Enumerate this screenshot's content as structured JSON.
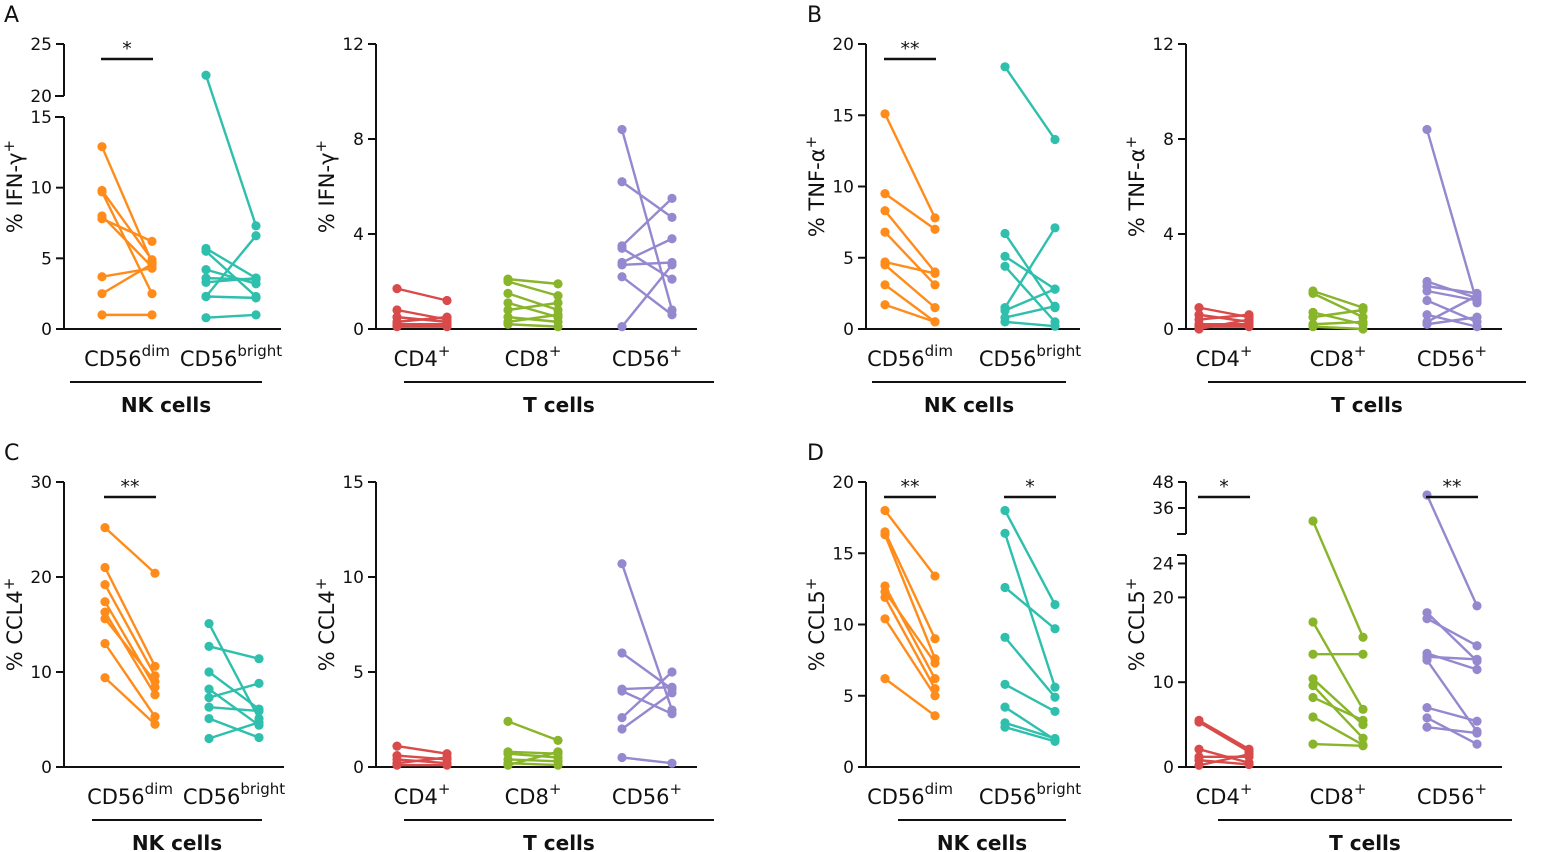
{
  "figure": {
    "panel_letters": [
      "A",
      "B",
      "C",
      "D"
    ]
  },
  "colors": {
    "CD56dim": "#ff8c1a",
    "CD56bright": "#2ebfad",
    "CD4": "#d94a4a",
    "CD8": "#88b52a",
    "CD56T": "#9588cf",
    "axis": "#111111"
  },
  "chart_data": [
    {
      "id": "A1",
      "panel": "A",
      "type": "scatter",
      "style": "paired-lines",
      "ylabel": "% IFN-γ⁺",
      "ylabel_main": "% IFN-",
      "ylabel_greek": "γ",
      "yticks": [
        0,
        5,
        10,
        15,
        20,
        25
      ],
      "ylim": [
        0,
        25
      ],
      "ybreak": {
        "lower_max": 15,
        "upper_min": 20,
        "upper_max": 25
      },
      "categories": [
        {
          "base": "CD56",
          "sup": "dim",
          "color_key": "CD56dim"
        },
        {
          "base": "CD56",
          "sup": "bright",
          "color_key": "CD56bright"
        }
      ],
      "group_label": "NK cells",
      "significance": [
        {
          "from": 0,
          "to": 0,
          "label": "*"
        }
      ],
      "pairs": [
        [
          [
            12.9,
            4.7
          ],
          [
            9.8,
            4.9
          ],
          [
            9.7,
            2.5
          ],
          [
            8.0,
            4.4
          ],
          [
            7.8,
            6.2
          ],
          [
            3.7,
            4.3
          ],
          [
            2.5,
            4.6
          ],
          [
            1.0,
            1.0
          ]
        ],
        [
          [
            22.0,
            7.3
          ],
          [
            5.7,
            3.6
          ],
          [
            5.5,
            2.3
          ],
          [
            4.2,
            3.2
          ],
          [
            3.6,
            3.5
          ],
          [
            3.3,
            3.6
          ],
          [
            2.3,
            6.6
          ],
          [
            2.3,
            2.2
          ],
          [
            0.8,
            1.0
          ]
        ]
      ]
    },
    {
      "id": "A2",
      "panel": "A",
      "type": "scatter",
      "style": "paired-lines",
      "ylabel": "% IFN-γ⁺",
      "ylabel_main": "% IFN-",
      "ylabel_greek": "γ",
      "yticks": [
        0,
        4,
        8,
        12
      ],
      "ylim": [
        0,
        12
      ],
      "categories": [
        {
          "base": "CD4",
          "sup": "+",
          "color_key": "CD4"
        },
        {
          "base": "CD8",
          "sup": "+",
          "color_key": "CD8"
        },
        {
          "base": "CD56",
          "sup": "+",
          "color_key": "CD56T"
        }
      ],
      "group_label": "T cells",
      "significance": [],
      "pairs": [
        [
          [
            1.7,
            1.2
          ],
          [
            0.8,
            0.4
          ],
          [
            0.5,
            0.3
          ],
          [
            0.3,
            0.5
          ],
          [
            0.2,
            0.2
          ],
          [
            0.1,
            0.1
          ]
        ],
        [
          [
            2.1,
            1.9
          ],
          [
            2.0,
            1.4
          ],
          [
            1.5,
            0.8
          ],
          [
            1.1,
            0.5
          ],
          [
            0.8,
            1.1
          ],
          [
            0.5,
            0.3
          ],
          [
            0.3,
            0.6
          ],
          [
            0.2,
            0.1
          ]
        ],
        [
          [
            8.4,
            0.8
          ],
          [
            6.2,
            4.7
          ],
          [
            3.5,
            5.5
          ],
          [
            3.4,
            2.1
          ],
          [
            2.8,
            3.8
          ],
          [
            2.7,
            2.8
          ],
          [
            2.2,
            0.6
          ],
          [
            0.1,
            2.7
          ]
        ]
      ]
    },
    {
      "id": "B1",
      "panel": "B",
      "type": "scatter",
      "style": "paired-lines",
      "ylabel": "% TNF-α⁺",
      "ylabel_main": "% TNF-",
      "ylabel_greek": "α",
      "yticks": [
        0,
        5,
        10,
        15,
        20
      ],
      "ylim": [
        0,
        20
      ],
      "categories": [
        {
          "base": "CD56",
          "sup": "dim",
          "color_key": "CD56dim"
        },
        {
          "base": "CD56",
          "sup": "bright",
          "color_key": "CD56bright"
        }
      ],
      "group_label": "NK cells",
      "significance": [
        {
          "from": 0,
          "to": 0,
          "label": "**"
        }
      ],
      "pairs": [
        [
          [
            15.1,
            7.8
          ],
          [
            9.5,
            7.0
          ],
          [
            8.3,
            4.0
          ],
          [
            6.8,
            3.1
          ],
          [
            4.7,
            3.9
          ],
          [
            4.5,
            1.5
          ],
          [
            3.1,
            0.5
          ],
          [
            1.7,
            0.5
          ]
        ],
        [
          [
            18.4,
            13.3
          ],
          [
            6.7,
            1.5
          ],
          [
            5.1,
            2.8
          ],
          [
            4.4,
            0.5
          ],
          [
            1.5,
            7.1
          ],
          [
            1.3,
            2.8
          ],
          [
            0.8,
            1.6
          ],
          [
            0.5,
            0.2
          ]
        ]
      ]
    },
    {
      "id": "B2",
      "panel": "B",
      "type": "scatter",
      "style": "paired-lines",
      "ylabel": "% TNF-α⁺",
      "ylabel_main": "% TNF-",
      "ylabel_greek": "α",
      "yticks": [
        0,
        4,
        8,
        12
      ],
      "ylim": [
        0,
        12
      ],
      "categories": [
        {
          "base": "CD4",
          "sup": "+",
          "color_key": "CD4"
        },
        {
          "base": "CD8",
          "sup": "+",
          "color_key": "CD8"
        },
        {
          "base": "CD56",
          "sup": "+",
          "color_key": "CD56T"
        }
      ],
      "group_label": "T cells",
      "significance": [],
      "pairs": [
        [
          [
            0.9,
            0.5
          ],
          [
            0.6,
            0.3
          ],
          [
            0.4,
            0.6
          ],
          [
            0.2,
            0.2
          ],
          [
            0.1,
            0.1
          ],
          [
            0.0,
            0.4
          ]
        ],
        [
          [
            1.6,
            0.9
          ],
          [
            1.5,
            0.5
          ],
          [
            0.7,
            0.2
          ],
          [
            0.5,
            0.8
          ],
          [
            0.2,
            0.3
          ],
          [
            0.1,
            0.0
          ]
        ],
        [
          [
            8.4,
            1.1
          ],
          [
            2.0,
            1.3
          ],
          [
            1.8,
            1.5
          ],
          [
            1.6,
            1.2
          ],
          [
            1.2,
            0.3
          ],
          [
            0.6,
            0.1
          ],
          [
            0.3,
            1.4
          ],
          [
            0.2,
            0.5
          ]
        ]
      ]
    },
    {
      "id": "C1",
      "panel": "C",
      "type": "scatter",
      "style": "paired-lines",
      "ylabel": "% CCL4⁺",
      "ylabel_main": "% CCL4",
      "ylabel_greek": "",
      "yticks": [
        0,
        10,
        20,
        30
      ],
      "ylim": [
        0,
        30
      ],
      "categories": [
        {
          "base": "CD56",
          "sup": "dim",
          "color_key": "CD56dim"
        },
        {
          "base": "CD56",
          "sup": "bright",
          "color_key": "CD56bright"
        }
      ],
      "group_label": "NK cells",
      "significance": [
        {
          "from": 0,
          "to": 0,
          "label": "**"
        }
      ],
      "pairs": [
        [
          [
            25.2,
            20.4
          ],
          [
            21.0,
            10.6
          ],
          [
            19.2,
            9.6
          ],
          [
            17.4,
            8.4
          ],
          [
            16.3,
            7.6
          ],
          [
            15.6,
            9.0
          ],
          [
            13.0,
            5.3
          ],
          [
            9.4,
            4.5
          ]
        ],
        [
          [
            15.1,
            5.1
          ],
          [
            12.7,
            11.4
          ],
          [
            10.0,
            6.1
          ],
          [
            8.2,
            4.4
          ],
          [
            7.3,
            8.8
          ],
          [
            6.3,
            5.9
          ],
          [
            5.1,
            3.1
          ],
          [
            3.0,
            4.7
          ]
        ]
      ]
    },
    {
      "id": "C2",
      "panel": "C",
      "type": "scatter",
      "style": "paired-lines",
      "ylabel": "% CCL4⁺",
      "ylabel_main": "% CCL4",
      "ylabel_greek": "",
      "yticks": [
        0,
        5,
        10,
        15
      ],
      "ylim": [
        0,
        15
      ],
      "categories": [
        {
          "base": "CD4",
          "sup": "+",
          "color_key": "CD4"
        },
        {
          "base": "CD8",
          "sup": "+",
          "color_key": "CD8"
        },
        {
          "base": "CD56",
          "sup": "+",
          "color_key": "CD56T"
        }
      ],
      "group_label": "T cells",
      "significance": [],
      "pairs": [
        [
          [
            1.1,
            0.7
          ],
          [
            0.6,
            0.4
          ],
          [
            0.4,
            0.2
          ],
          [
            0.2,
            0.5
          ],
          [
            0.1,
            0.1
          ]
        ],
        [
          [
            2.4,
            1.4
          ],
          [
            0.8,
            0.7
          ],
          [
            0.7,
            0.5
          ],
          [
            0.4,
            0.3
          ],
          [
            0.2,
            0.1
          ],
          [
            0.1,
            0.8
          ]
        ],
        [
          [
            10.7,
            3.0
          ],
          [
            6.0,
            4.1
          ],
          [
            4.1,
            4.2
          ],
          [
            4.0,
            2.8
          ],
          [
            2.6,
            5.0
          ],
          [
            2.0,
            3.9
          ],
          [
            0.5,
            0.2
          ]
        ]
      ]
    },
    {
      "id": "D1",
      "panel": "D",
      "type": "scatter",
      "style": "paired-lines",
      "ylabel": "% CCL5⁺",
      "ylabel_main": "% CCL5",
      "ylabel_greek": "",
      "yticks": [
        0,
        5,
        10,
        15,
        20
      ],
      "ylim": [
        0,
        20
      ],
      "categories": [
        {
          "base": "CD56",
          "sup": "dim",
          "color_key": "CD56dim"
        },
        {
          "base": "CD56",
          "sup": "bright",
          "color_key": "CD56bright"
        }
      ],
      "group_label": "NK cells",
      "significance": [
        {
          "from": 0,
          "to": 0,
          "label": "**"
        },
        {
          "from": 1,
          "to": 1,
          "label": "*"
        }
      ],
      "pairs": [
        [
          [
            18.0,
            13.4
          ],
          [
            16.5,
            9.0
          ],
          [
            16.3,
            7.6
          ],
          [
            12.7,
            6.2
          ],
          [
            12.3,
            7.3
          ],
          [
            11.9,
            5.5
          ],
          [
            10.4,
            5.0
          ],
          [
            6.2,
            3.6
          ]
        ],
        [
          [
            18.0,
            11.4
          ],
          [
            16.4,
            5.6
          ],
          [
            12.6,
            9.7
          ],
          [
            9.1,
            4.9
          ],
          [
            5.8,
            3.9
          ],
          [
            4.2,
            1.9
          ],
          [
            3.1,
            2.0
          ],
          [
            2.8,
            1.8
          ]
        ]
      ]
    },
    {
      "id": "D2",
      "panel": "D",
      "type": "scatter",
      "style": "paired-lines",
      "ylabel": "% CCL5⁺",
      "ylabel_main": "% CCL5",
      "ylabel_greek": "",
      "yticks": [
        0,
        10,
        20,
        24,
        36,
        48
      ],
      "ylim": [
        0,
        48
      ],
      "ybreak": {
        "lower_max": 25,
        "upper_min": 24,
        "upper_max": 48
      },
      "categories": [
        {
          "base": "CD4",
          "sup": "+",
          "color_key": "CD4"
        },
        {
          "base": "CD8",
          "sup": "+",
          "color_key": "CD8"
        },
        {
          "base": "CD56",
          "sup": "+",
          "color_key": "CD56T"
        }
      ],
      "group_label": "T cells",
      "significance": [
        {
          "from": 0,
          "to": 0,
          "label": "*"
        },
        {
          "from": 2,
          "to": 2,
          "label": "**"
        }
      ],
      "pairs": [
        [
          [
            5.5,
            2.1
          ],
          [
            5.3,
            1.8
          ],
          [
            2.1,
            0.5
          ],
          [
            1.2,
            1.2
          ],
          [
            0.8,
            0.3
          ],
          [
            0.2,
            1.5
          ]
        ],
        [
          [
            30.0,
            15.3
          ],
          [
            17.1,
            6.8
          ],
          [
            13.3,
            13.3
          ],
          [
            10.4,
            5.0
          ],
          [
            9.6,
            3.4
          ],
          [
            8.2,
            5.5
          ],
          [
            5.9,
            2.6
          ],
          [
            2.7,
            2.5
          ]
        ],
        [
          [
            42.0,
            19.0
          ],
          [
            18.2,
            12.5
          ],
          [
            17.5,
            14.3
          ],
          [
            13.4,
            11.5
          ],
          [
            13.0,
            12.7
          ],
          [
            12.6,
            4.2
          ],
          [
            7.0,
            5.4
          ],
          [
            5.8,
            2.7
          ],
          [
            4.7,
            4.0
          ]
        ]
      ]
    }
  ]
}
